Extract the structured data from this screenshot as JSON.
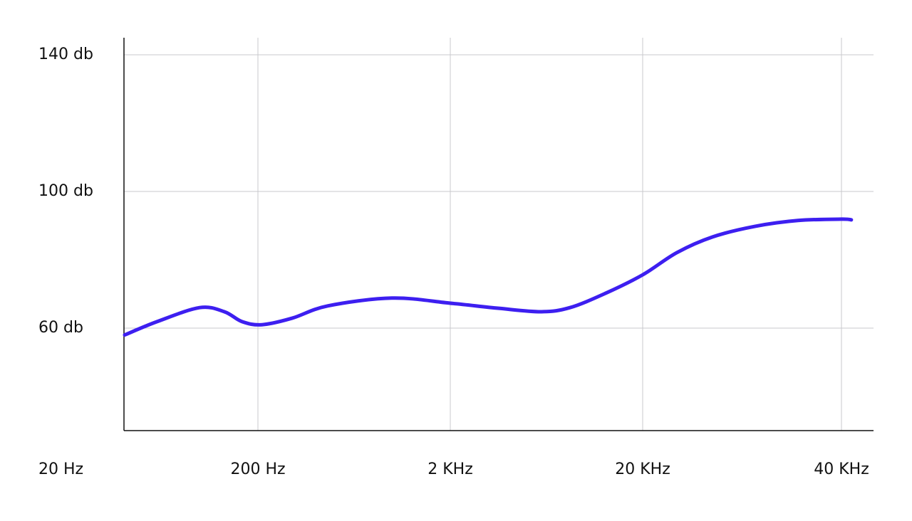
{
  "chart_data": {
    "type": "line",
    "log_x": true,
    "grid": true,
    "x": [
      20,
      35,
      73,
      112,
      152,
      210,
      301,
      461,
      993,
      2000,
      3572,
      5958,
      8375,
      12820,
      20000,
      22530,
      25520,
      29620,
      34370,
      40000,
      41400
    ],
    "series": [
      {
        "color": "#3d1ff0",
        "values": [
          58,
          61.9,
          66,
          64.8,
          61.9,
          61,
          62.9,
          66.5,
          68.8,
          67.3,
          65.8,
          64.8,
          66,
          70.2,
          75.6,
          82.1,
          86.7,
          89.8,
          91.5,
          91.9,
          91.7
        ]
      }
    ],
    "xticks": [
      {
        "value": 20,
        "label": "20 Hz"
      },
      {
        "value": 200,
        "label": "200 Hz"
      },
      {
        "value": 2000,
        "label": "2 KHz"
      },
      {
        "value": 20000,
        "label": "20 KHz"
      },
      {
        "value": 40000,
        "label": "40 KHz"
      }
    ],
    "ylim": [
      30,
      145
    ],
    "yticks": [
      {
        "value": 60,
        "label": "60 db"
      },
      {
        "value": 100,
        "label": "100 db"
      },
      {
        "value": 140,
        "label": "140 db"
      }
    ]
  }
}
